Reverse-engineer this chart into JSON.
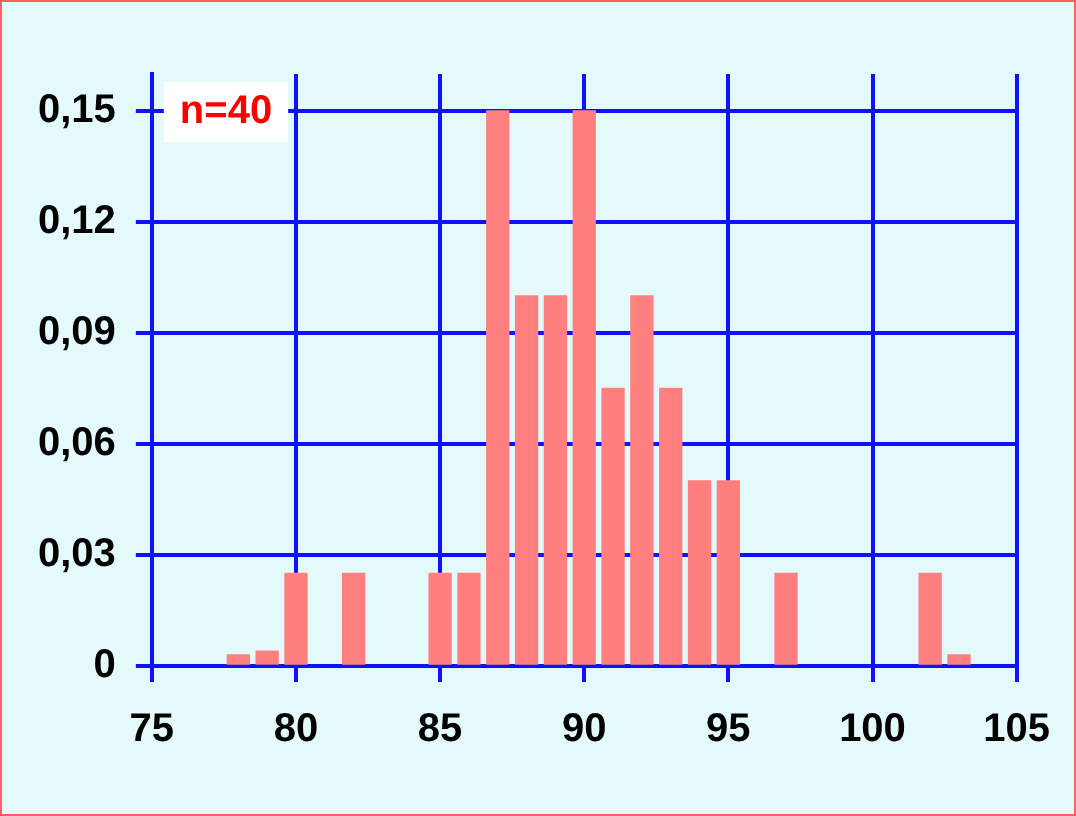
{
  "chart_data": {
    "type": "bar",
    "x": [
      78,
      79,
      80,
      82,
      85,
      86,
      87,
      88,
      89,
      90,
      91,
      92,
      93,
      94,
      95,
      97,
      102,
      103
    ],
    "values": [
      0.003,
      0.004,
      0.025,
      0.025,
      0.025,
      0.025,
      0.15,
      0.1,
      0.1,
      0.15,
      0.075,
      0.1,
      0.075,
      0.05,
      0.05,
      0.025,
      0.025,
      0.003
    ],
    "color": "#ff7f7f",
    "xlim": [
      75,
      105
    ],
    "xticks": [
      75,
      80,
      85,
      90,
      95,
      100,
      105
    ],
    "ylim": [
      0,
      0.16
    ],
    "yticks": [
      {
        "value": 0,
        "label": "0"
      },
      {
        "value": 0.03,
        "label": "0,03"
      },
      {
        "value": 0.06,
        "label": "0,06"
      },
      {
        "value": 0.09,
        "label": "0,09"
      },
      {
        "value": 0.12,
        "label": "0,12"
      },
      {
        "value": 0.15,
        "label": "0,15"
      }
    ],
    "grid": true,
    "annotations": [
      "n=40"
    ]
  }
}
